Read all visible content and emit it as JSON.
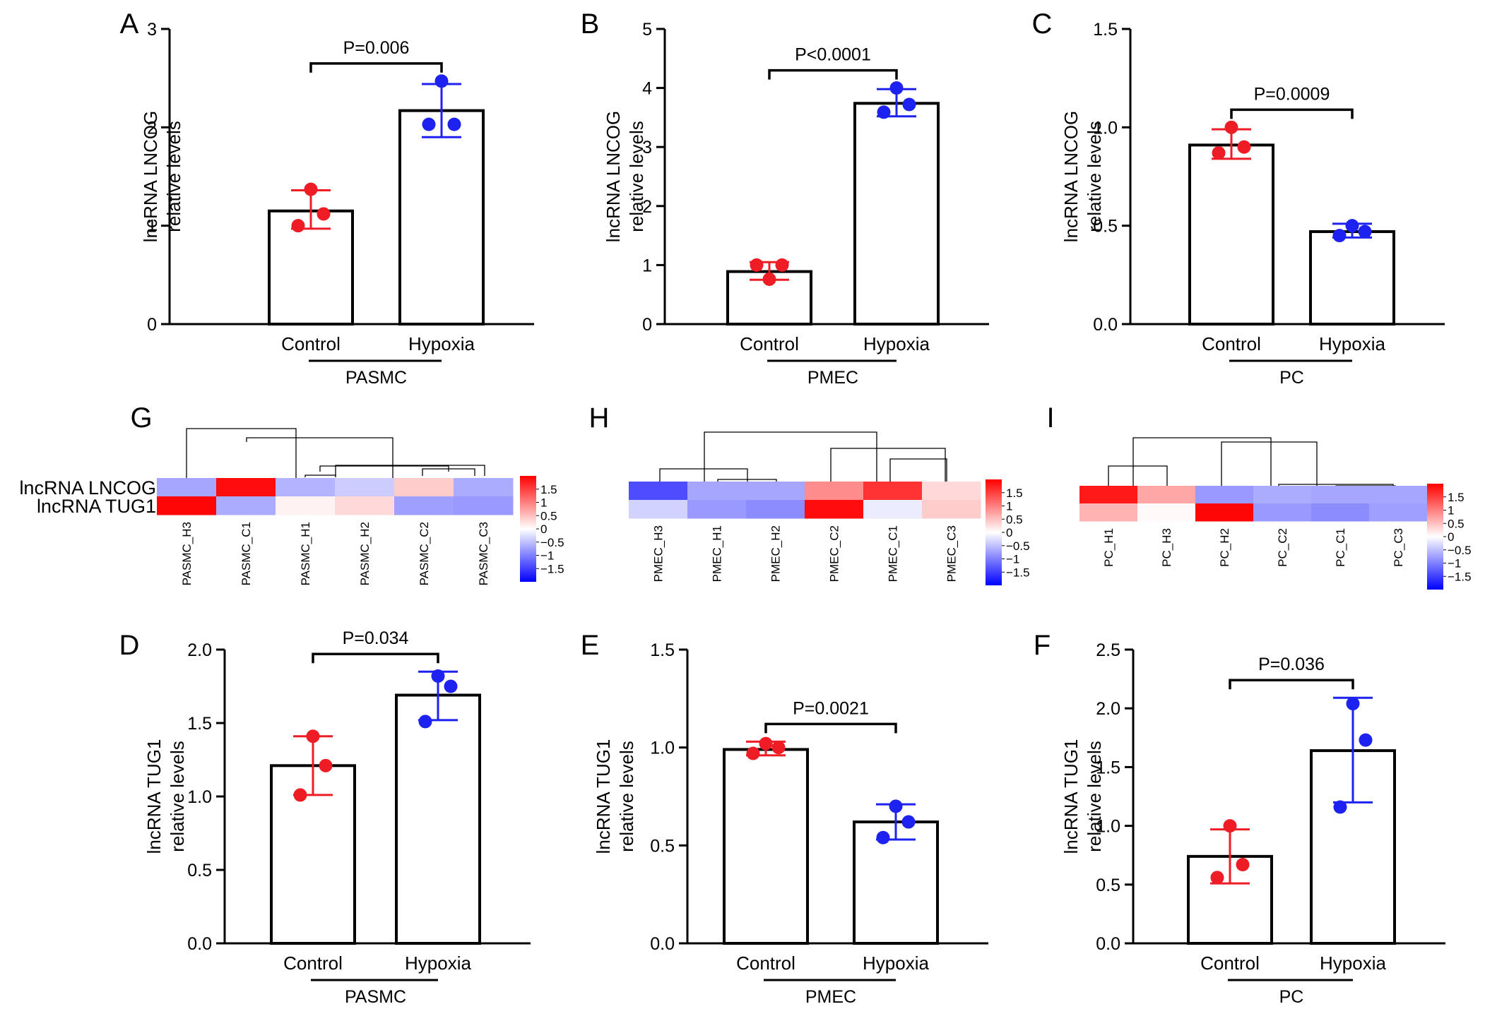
{
  "colors": {
    "control": "#ee1c24",
    "hypoxia": "#1e22f0",
    "heat_high": "#ff0000",
    "heat_mid": "#ffffff",
    "heat_low": "#0000ff"
  },
  "chart_data": [
    {
      "id": "A",
      "type": "bar",
      "panel_label": "A",
      "ylabel_line1": "lncRNA LNCOG",
      "ylabel_line2": "relative levels",
      "ylim": [
        0,
        3
      ],
      "yticks": [
        "0",
        "1",
        "2",
        "3"
      ],
      "categories": [
        "Control",
        "Hypoxia"
      ],
      "group": "PASMC",
      "values": [
        1.15,
        2.17
      ],
      "err_low": [
        0.97,
        1.9
      ],
      "err_high": [
        1.36,
        2.44
      ],
      "points": [
        [
          1.0,
          1.12,
          1.37
        ],
        [
          2.03,
          2.03,
          2.47
        ]
      ],
      "p_label": "P=0.006"
    },
    {
      "id": "B",
      "type": "bar",
      "panel_label": "B",
      "ylabel_line1": "lncRNA LNCOG",
      "ylabel_line2": "relative levels",
      "ylim": [
        0,
        5
      ],
      "yticks": [
        "0",
        "1",
        "2",
        "3",
        "4",
        "5"
      ],
      "categories": [
        "Control",
        "Hypoxia"
      ],
      "group": "PMEC",
      "values": [
        0.89,
        3.74
      ],
      "err_low": [
        0.75,
        3.52
      ],
      "err_high": [
        1.05,
        3.98
      ],
      "points": [
        [
          1.0,
          1.0,
          0.76
        ],
        [
          3.59,
          3.72,
          4.0
        ]
      ],
      "p_label": "P<0.0001"
    },
    {
      "id": "C",
      "type": "bar",
      "panel_label": "C",
      "ylabel_line1": "lncRNA LNCOG",
      "ylabel_line2": "relative levels",
      "ylim": [
        0,
        1.5
      ],
      "yticks": [
        "0.0",
        "0.5",
        "1.0",
        "1.5"
      ],
      "categories": [
        "Control",
        "Hypoxia"
      ],
      "group": "PC",
      "values": [
        0.91,
        0.47
      ],
      "err_low": [
        0.84,
        0.44
      ],
      "err_high": [
        0.99,
        0.51
      ],
      "points": [
        [
          0.87,
          0.9,
          1.0
        ],
        [
          0.45,
          0.47,
          0.5
        ]
      ],
      "p_label": "P=0.0009"
    },
    {
      "id": "D",
      "type": "bar",
      "panel_label": "D",
      "ylabel_line1": "lncRNA TUG1",
      "ylabel_line2": "relative levels",
      "ylim": [
        0,
        2.0
      ],
      "yticks": [
        "0.0",
        "0.5",
        "1.0",
        "1.5",
        "2.0"
      ],
      "categories": [
        "Control",
        "Hypoxia"
      ],
      "group": "PASMC",
      "values": [
        1.21,
        1.69
      ],
      "err_low": [
        1.01,
        1.52
      ],
      "err_high": [
        1.41,
        1.85
      ],
      "points": [
        [
          1.01,
          1.21,
          1.41
        ],
        [
          1.51,
          1.75,
          1.82
        ]
      ],
      "p_label": "P=0.034"
    },
    {
      "id": "E",
      "type": "bar",
      "panel_label": "E",
      "ylabel_line1": "lncRNA TUG1",
      "ylabel_line2": "relative levels",
      "ylim": [
        0,
        1.5
      ],
      "yticks": [
        "0.0",
        "0.5",
        "1.0",
        "1.5"
      ],
      "categories": [
        "Control",
        "Hypoxia"
      ],
      "group": "PMEC",
      "values": [
        0.99,
        0.62
      ],
      "err_low": [
        0.96,
        0.53
      ],
      "err_high": [
        1.03,
        0.71
      ],
      "points": [
        [
          0.97,
          1.0,
          1.02
        ],
        [
          0.54,
          0.62,
          0.7
        ]
      ],
      "p_label": "P=0.0021"
    },
    {
      "id": "F",
      "type": "bar",
      "panel_label": "F",
      "ylabel_line1": "lncRNA TUG1",
      "ylabel_line2": "relative levels",
      "ylim": [
        0,
        2.5
      ],
      "yticks": [
        "0.0",
        "0.5",
        "1.0",
        "1.5",
        "2.0",
        "2.5"
      ],
      "categories": [
        "Control",
        "Hypoxia"
      ],
      "group": "PC",
      "values": [
        0.74,
        1.64
      ],
      "err_low": [
        0.51,
        1.2
      ],
      "err_high": [
        0.97,
        2.09
      ],
      "points": [
        [
          0.56,
          0.67,
          1.0
        ],
        [
          1.16,
          1.73,
          2.04
        ]
      ],
      "p_label": "P=0.036"
    },
    {
      "id": "G",
      "type": "heatmap",
      "panel_label": "G",
      "row_labels": [
        "lncRNA LNCOG",
        "lncRNA TUG1"
      ],
      "columns": [
        "PASMC_H3",
        "PASMC_C1",
        "PASMC_H1",
        "PASMC_H2",
        "PASMC_C2",
        "PASMC_C3"
      ],
      "values": [
        [
          -0.7,
          1.9,
          -0.6,
          -0.4,
          0.4,
          -0.65
        ],
        [
          1.95,
          -0.65,
          0.1,
          0.3,
          -0.75,
          -0.8
        ]
      ],
      "zlim": [
        -2,
        2
      ],
      "colorbar_ticks": [
        "1.5",
        "1",
        "0.5",
        "0",
        "−0.5",
        "−1",
        "−1.5"
      ]
    },
    {
      "id": "H",
      "type": "heatmap",
      "panel_label": "H",
      "row_labels": [],
      "columns": [
        "PMEC_H3",
        "PMEC_H1",
        "PMEC_H2",
        "PMEC_C2",
        "PMEC_C1",
        "PMEC_C3"
      ],
      "values": [
        [
          -1.4,
          -0.7,
          -0.7,
          0.9,
          1.6,
          0.3
        ],
        [
          -0.35,
          -0.8,
          -0.9,
          1.9,
          -0.15,
          0.4
        ]
      ],
      "zlim": [
        -2,
        2
      ],
      "colorbar_ticks": [
        "1.5",
        "1",
        "0.5",
        "0",
        "−0.5",
        "−1",
        "−1.5"
      ]
    },
    {
      "id": "I",
      "type": "heatmap",
      "panel_label": "I",
      "row_labels": [],
      "columns": [
        "PC_H1",
        "PC_H3",
        "PC_H2",
        "PC_C2",
        "PC_C1",
        "PC_C3"
      ],
      "values": [
        [
          1.8,
          0.7,
          -0.8,
          -0.65,
          -0.7,
          -0.7
        ],
        [
          0.6,
          0.05,
          1.95,
          -0.8,
          -0.9,
          -0.75
        ]
      ],
      "zlim": [
        -2,
        2
      ],
      "colorbar_ticks": [
        "1.5",
        "1",
        "0.5",
        "0",
        "−0.5",
        "−1",
        "−1.5"
      ]
    }
  ]
}
